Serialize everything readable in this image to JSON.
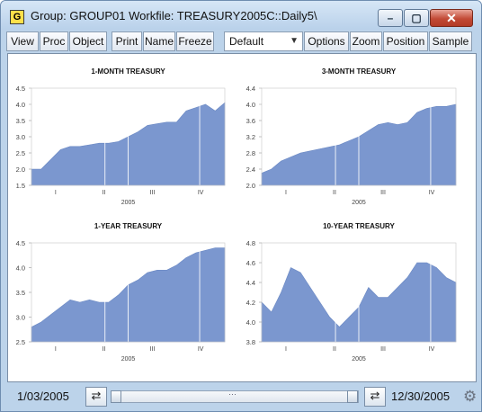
{
  "window": {
    "app_icon_letter": "G",
    "title": "Group: GROUP01   Workfile: TREASURY2005C::Daily5\\",
    "controls": {
      "minimize": "–",
      "maximize": "▢",
      "close": "✕"
    }
  },
  "toolbar": {
    "buttons": [
      "View",
      "Proc",
      "Object",
      "Print",
      "Name",
      "Freeze",
      "Options",
      "Zoom",
      "Position",
      "Sample"
    ],
    "view_select": "Default"
  },
  "status": {
    "start_date": "1/03/2005",
    "end_date": "12/30/2005",
    "grip": "⋯"
  },
  "colors": {
    "series_fill": "#7b97cf",
    "axis_text": "#444444",
    "title_bar": "#c5d9ee",
    "close_button": "#c24a36"
  },
  "chart_data": [
    {
      "type": "area",
      "title": "1-MONTH TREASURY",
      "xlabel": "2005",
      "x_ticks": [
        "I",
        "II",
        "III",
        "IV"
      ],
      "ylim": [
        1.5,
        4.5
      ],
      "y_ticks": [
        1.5,
        2.0,
        2.5,
        3.0,
        3.5,
        4.0,
        4.5
      ],
      "series": [
        {
          "x": [
            0,
            0.05,
            0.1,
            0.15,
            0.2,
            0.25,
            0.3,
            0.35,
            0.4,
            0.45,
            0.5,
            0.55,
            0.6,
            0.65,
            0.7,
            0.75,
            0.8,
            0.85,
            0.9,
            0.95,
            1.0
          ],
          "values": [
            2.0,
            2.0,
            2.3,
            2.6,
            2.7,
            2.7,
            2.75,
            2.8,
            2.8,
            2.85,
            3.0,
            3.15,
            3.35,
            3.4,
            3.45,
            3.45,
            3.8,
            3.9,
            4.0,
            3.8,
            4.05
          ]
        }
      ]
    },
    {
      "type": "area",
      "title": "3-MONTH TREASURY",
      "xlabel": "2005",
      "x_ticks": [
        "I",
        "II",
        "III",
        "IV"
      ],
      "ylim": [
        2.0,
        4.4
      ],
      "y_ticks": [
        2.0,
        2.4,
        2.8,
        3.2,
        3.6,
        4.0,
        4.4
      ],
      "series": [
        {
          "x": [
            0,
            0.05,
            0.1,
            0.15,
            0.2,
            0.25,
            0.3,
            0.35,
            0.4,
            0.45,
            0.5,
            0.55,
            0.6,
            0.65,
            0.7,
            0.75,
            0.8,
            0.85,
            0.9,
            0.95,
            1.0
          ],
          "values": [
            2.3,
            2.4,
            2.6,
            2.7,
            2.8,
            2.85,
            2.9,
            2.95,
            3.0,
            3.1,
            3.2,
            3.35,
            3.5,
            3.55,
            3.5,
            3.55,
            3.8,
            3.9,
            3.95,
            3.95,
            4.0
          ]
        }
      ]
    },
    {
      "type": "area",
      "title": "1-YEAR TREASURY",
      "xlabel": "2005",
      "x_ticks": [
        "I",
        "II",
        "III",
        "IV"
      ],
      "ylim": [
        2.5,
        4.5
      ],
      "y_ticks": [
        2.5,
        3.0,
        3.5,
        4.0,
        4.5
      ],
      "series": [
        {
          "x": [
            0,
            0.05,
            0.1,
            0.15,
            0.2,
            0.25,
            0.3,
            0.35,
            0.4,
            0.45,
            0.5,
            0.55,
            0.6,
            0.65,
            0.7,
            0.75,
            0.8,
            0.85,
            0.9,
            0.95,
            1.0
          ],
          "values": [
            2.8,
            2.9,
            3.05,
            3.2,
            3.35,
            3.3,
            3.35,
            3.3,
            3.3,
            3.45,
            3.65,
            3.75,
            3.9,
            3.95,
            3.95,
            4.05,
            4.2,
            4.3,
            4.35,
            4.4,
            4.4
          ]
        }
      ]
    },
    {
      "type": "area",
      "title": "10-YEAR TREASURY",
      "xlabel": "2005",
      "x_ticks": [
        "I",
        "II",
        "III",
        "IV"
      ],
      "ylim": [
        3.8,
        4.8
      ],
      "y_ticks": [
        3.8,
        4.0,
        4.2,
        4.4,
        4.6,
        4.8
      ],
      "series": [
        {
          "x": [
            0,
            0.05,
            0.1,
            0.15,
            0.2,
            0.25,
            0.3,
            0.35,
            0.4,
            0.45,
            0.5,
            0.55,
            0.6,
            0.65,
            0.7,
            0.75,
            0.8,
            0.85,
            0.9,
            0.95,
            1.0
          ],
          "values": [
            4.2,
            4.1,
            4.3,
            4.55,
            4.5,
            4.35,
            4.2,
            4.05,
            3.95,
            4.05,
            4.15,
            4.35,
            4.25,
            4.25,
            4.35,
            4.45,
            4.6,
            4.6,
            4.55,
            4.45,
            4.4
          ]
        }
      ]
    }
  ]
}
